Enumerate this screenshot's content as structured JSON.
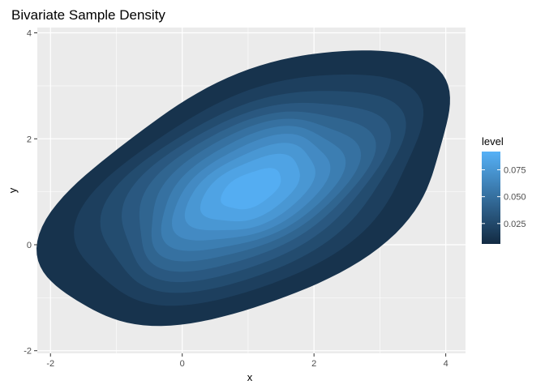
{
  "chart_data": {
    "type": "contour-density",
    "title": "Bivariate Sample Density",
    "xlabel": "x",
    "ylabel": "y",
    "xlim": [
      -2.2,
      4.3
    ],
    "ylim": [
      -2.05,
      4.1
    ],
    "x_ticks": [
      -2,
      0,
      2,
      4
    ],
    "y_ticks": [
      -2,
      0,
      2,
      4
    ],
    "grid": true,
    "panel_background": "#ebebeb",
    "legend": {
      "title": "level",
      "position": "right",
      "range": [
        0.006,
        0.092
      ],
      "ticks": [
        0.025,
        0.05,
        0.075
      ],
      "tick_labels": [
        "0.025",
        "0.050",
        "0.075"
      ],
      "low_color": "#132b43",
      "high_color": "#56b1f7"
    },
    "density": {
      "center": [
        1.05,
        1.05
      ],
      "axis_angle_deg": 35,
      "sigma_major": 1.55,
      "sigma_minor": 0.88,
      "peak": 0.092,
      "levels": [
        0.007,
        0.015,
        0.023,
        0.031,
        0.039,
        0.047,
        0.055,
        0.063,
        0.071,
        0.079,
        0.087
      ]
    }
  }
}
